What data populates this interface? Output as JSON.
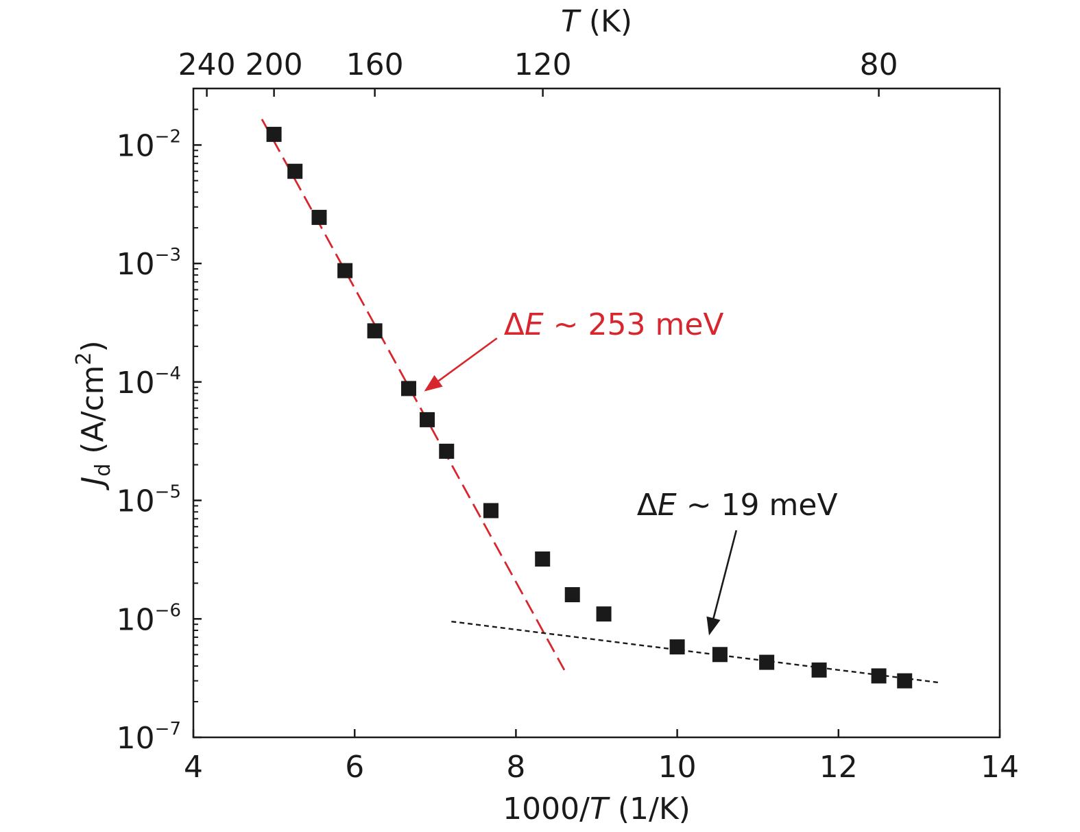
{
  "chart_data": {
    "type": "scatter",
    "y_scale": "log",
    "xlim": [
      4,
      14
    ],
    "ylim": [
      1e-07,
      0.03
    ],
    "x_ticks": [
      4,
      6,
      8,
      10,
      12,
      14
    ],
    "x_tick_labels": [
      "4",
      "6",
      "8",
      "10",
      "12",
      "14"
    ],
    "y_ticks": [
      1e-07,
      1e-06,
      1e-05,
      0.0001,
      0.001,
      0.01
    ],
    "y_tick_labels": [
      {
        "base": "10",
        "exp": "−7"
      },
      {
        "base": "10",
        "exp": "−6"
      },
      {
        "base": "10",
        "exp": "−5"
      },
      {
        "base": "10",
        "exp": "−4"
      },
      {
        "base": "10",
        "exp": "−3"
      },
      {
        "base": "10",
        "exp": "−2"
      }
    ],
    "top_axis": {
      "title_italic": "T",
      "title_rest": " (K)",
      "ticks": [
        240,
        200,
        160,
        120,
        80
      ],
      "tick_labels": [
        "240",
        "200",
        "160",
        "120",
        "80"
      ]
    },
    "xlabel": {
      "prefix": "1000/",
      "italic": "T",
      "suffix": " (1/K)"
    },
    "ylabel": {
      "italic": "J",
      "sub": "d",
      "rest": " (A/cm",
      "sup": "2",
      "close": ")"
    },
    "grid": false,
    "series": [
      {
        "marker": "square",
        "color": "#1a1a1a",
        "points": [
          [
            5.0,
            0.0123
          ],
          [
            5.26,
            0.006
          ],
          [
            5.56,
            0.00245
          ],
          [
            5.88,
            0.00087
          ],
          [
            6.25,
            0.00027
          ],
          [
            6.67,
            8.8e-05
          ],
          [
            6.9,
            4.8e-05
          ],
          [
            7.14,
            2.6e-05
          ],
          [
            7.69,
            8.2e-06
          ],
          [
            8.33,
            3.2e-06
          ],
          [
            8.7,
            1.6e-06
          ],
          [
            9.09,
            1.1e-06
          ],
          [
            10.0,
            5.8e-07
          ],
          [
            10.53,
            5e-07
          ],
          [
            11.11,
            4.3e-07
          ],
          [
            11.76,
            3.7e-07
          ],
          [
            12.5,
            3.3e-07
          ],
          [
            12.82,
            3e-07
          ]
        ]
      }
    ],
    "fit_lines": [
      {
        "color": "#d7262e",
        "style": "long-dash",
        "from": [
          4.85,
          0.0165
        ],
        "to": [
          8.6,
          3.7e-07
        ]
      },
      {
        "color": "#1a1a1a",
        "style": "short-dash",
        "from": [
          7.2,
          9.5e-07
        ],
        "to": [
          13.25,
          2.9e-07
        ]
      }
    ],
    "annotations": [
      {
        "color": "#d7262e",
        "prefix": "Δ",
        "italic": "E",
        "rest": " ~ 253 meV",
        "text_at": [
          7.85,
          0.00025
        ],
        "arrow_to": [
          6.88,
          8.5e-05
        ]
      },
      {
        "color": "#1a1a1a",
        "prefix": "Δ",
        "italic": "E",
        "rest": " ~ 19 meV",
        "text_at": [
          9.5,
          7.5e-06
        ],
        "arrow_to": [
          10.4,
          7.5e-07
        ]
      }
    ]
  }
}
